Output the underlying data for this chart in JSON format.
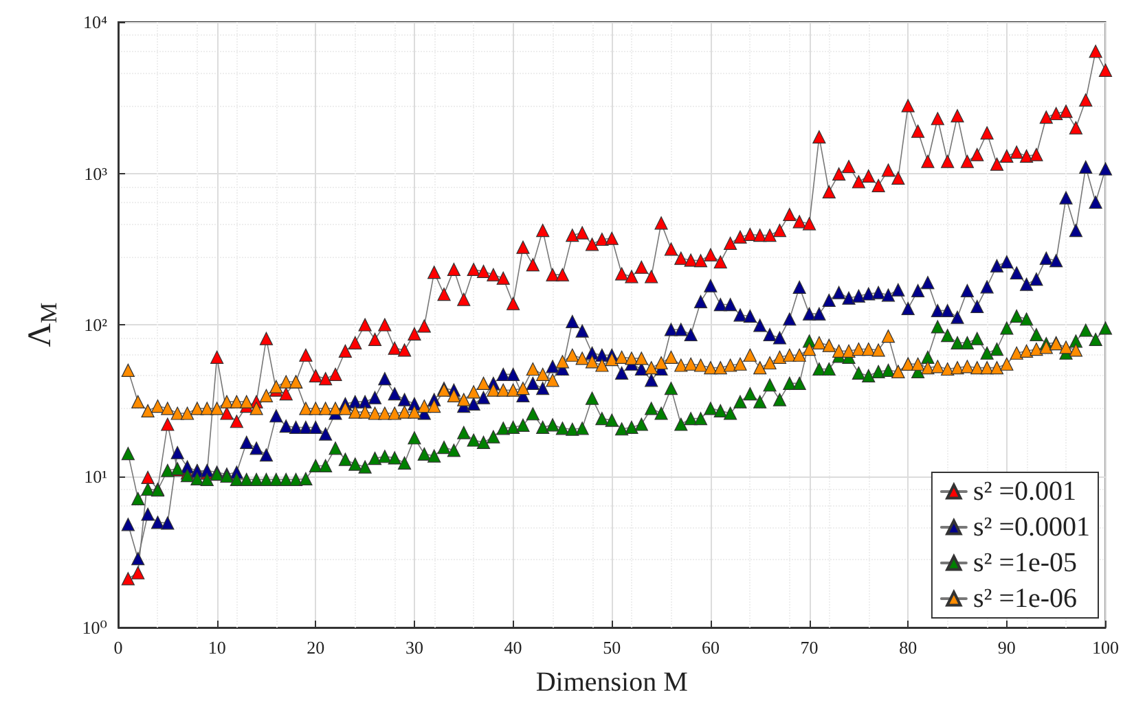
{
  "chart_data": {
    "type": "line",
    "xlabel": "Dimension M",
    "ylabel": "Λ$_{M}$",
    "log": "y",
    "grid": true,
    "legend": "bottom right",
    "marker": "triangle",
    "line_style": "solid",
    "xlim": [
      0,
      100
    ],
    "xticks": [
      0,
      10,
      20,
      30,
      40,
      50,
      60,
      70,
      80,
      90,
      100
    ],
    "ylim": [
      1,
      10000
    ],
    "yticks": [
      {
        "value": 1,
        "label": "10⁰"
      },
      {
        "value": 10,
        "label": "10¹"
      },
      {
        "value": 100,
        "label": "10²"
      },
      {
        "value": 1000,
        "label": "10³"
      },
      {
        "value": 10000,
        "label": "10⁴"
      }
    ],
    "x": [
      1,
      2,
      3,
      4,
      5,
      6,
      7,
      8,
      9,
      10,
      11,
      12,
      13,
      14,
      15,
      16,
      17,
      18,
      19,
      20,
      21,
      22,
      23,
      24,
      25,
      26,
      27,
      28,
      29,
      30,
      31,
      32,
      33,
      34,
      35,
      36,
      37,
      38,
      39,
      40,
      41,
      42,
      43,
      44,
      45,
      46,
      47,
      48,
      49,
      50,
      51,
      52,
      53,
      54,
      55,
      56,
      57,
      58,
      59,
      60,
      61,
      62,
      63,
      64,
      65,
      66,
      67,
      68,
      69,
      70,
      71,
      72,
      73,
      74,
      75,
      76,
      77,
      78,
      79,
      80,
      81,
      82,
      83,
      84,
      85,
      86,
      87,
      88,
      89,
      90,
      91,
      92,
      93,
      94,
      95,
      96,
      97,
      98,
      99,
      100
    ],
    "series": [
      {
        "name": "s² =0.001",
        "color": "#ff0000",
        "values": [
          2.1,
          2.3,
          9.8,
          8.2,
          22,
          11,
          10.5,
          10.9,
          10.5,
          61,
          26,
          23,
          29,
          31,
          81,
          37,
          35,
          42,
          63,
          46,
          44,
          47,
          67,
          76,
          100,
          80,
          100,
          70,
          68,
          87,
          98,
          222,
          159,
          232,
          147,
          232,
          225,
          214,
          203,
          138,
          325,
          249,
          420,
          214,
          214,
          390,
          405,
          340,
          367,
          372,
          217,
          208,
          240,
          208,
          470,
          316,
          275,
          267,
          265,
          290,
          260,
          345,
          380,
          395,
          390,
          390,
          420,
          535,
          480,
          465,
          1740,
          755,
          990,
          1110,
          880,
          960,
          830,
          1050,
          930,
          2800,
          1900,
          1200,
          2300,
          1200,
          2400,
          1200,
          1330,
          1850,
          1150,
          1300,
          1380,
          1300,
          1330,
          2350,
          2480,
          2570,
          2000,
          3050,
          6400,
          4800
        ]
      },
      {
        "name": "s² =0.0001",
        "color": "#00008b",
        "values": [
          4.8,
          2.85,
          5.6,
          4.95,
          4.9,
          14.3,
          11.5,
          10.8,
          10.9,
          10.6,
          10.3,
          10.6,
          16.7,
          15.3,
          13.8,
          25,
          21.4,
          21,
          21,
          21,
          19,
          26,
          30,
          31,
          31,
          33,
          44,
          35,
          32,
          30,
          26,
          32,
          38,
          37,
          29,
          30,
          33,
          41,
          47,
          47,
          34,
          41,
          38,
          53,
          51,
          105,
          91,
          65,
          63,
          63,
          48,
          55,
          51,
          43,
          51,
          93,
          93,
          86,
          142,
          181,
          136,
          136,
          116,
          114,
          99,
          86,
          82,
          109,
          177,
          118,
          118,
          145,
          163,
          150,
          155,
          160,
          163,
          157,
          170,
          128,
          168,
          190,
          124,
          124,
          112,
          168,
          132,
          178,
          245,
          260,
          220,
          185,
          200,
          275,
          265,
          690,
          420,
          1100,
          645,
          1070
        ]
      },
      {
        "name": "s² =1e-05",
        "color": "#008000",
        "values": [
          14.1,
          7.1,
          8.2,
          8.1,
          10.9,
          11.2,
          10.1,
          9.6,
          9.5,
          10.3,
          10,
          9.5,
          9.5,
          9.5,
          9.5,
          9.5,
          9.5,
          9.5,
          9.6,
          11.7,
          11.7,
          15.3,
          12.9,
          12,
          11.5,
          13.1,
          13.5,
          13.2,
          12.2,
          17.9,
          14,
          13.6,
          15.5,
          14.8,
          19.4,
          17.3,
          16.7,
          18.2,
          20.7,
          21,
          21.7,
          25.8,
          21,
          21.8,
          20.7,
          20.4,
          20.7,
          32.7,
          24,
          23.4,
          20.5,
          21,
          22,
          28,
          26,
          38,
          22,
          24,
          24,
          28,
          27,
          26,
          31,
          35,
          31,
          40,
          32,
          41,
          41,
          78,
          51,
          51,
          62,
          61,
          48,
          46,
          49,
          50,
          49,
          55,
          49,
          61,
          97,
          85,
          76,
          76,
          81,
          65,
          69,
          95,
          114,
          109,
          86,
          75,
          76,
          65,
          78,
          92,
          80,
          95
        ]
      },
      {
        "name": "s² =1e-06",
        "color": "#ff8c00",
        "values": [
          50,
          31,
          27,
          29,
          28,
          26,
          26,
          28,
          28,
          28,
          31,
          31,
          31,
          28,
          34,
          39,
          42,
          42,
          28,
          28,
          28,
          28,
          28,
          26.5,
          26.5,
          26,
          26,
          26,
          26.5,
          26.5,
          29,
          29,
          37,
          34,
          32,
          36,
          41,
          37,
          37,
          37,
          38,
          51,
          47,
          43,
          57,
          63,
          60,
          57,
          54,
          59,
          61,
          60,
          60,
          52,
          56,
          61,
          54,
          55,
          54,
          52,
          52,
          54,
          55,
          63,
          52,
          56,
          61,
          63,
          63,
          69,
          76,
          73,
          67,
          67,
          69,
          69,
          68,
          84,
          49,
          55,
          55,
          52,
          53,
          51,
          52,
          53,
          52,
          52,
          52,
          55,
          65,
          67,
          69,
          71,
          75,
          71,
          68,
          null,
          null,
          null
        ]
      }
    ]
  }
}
